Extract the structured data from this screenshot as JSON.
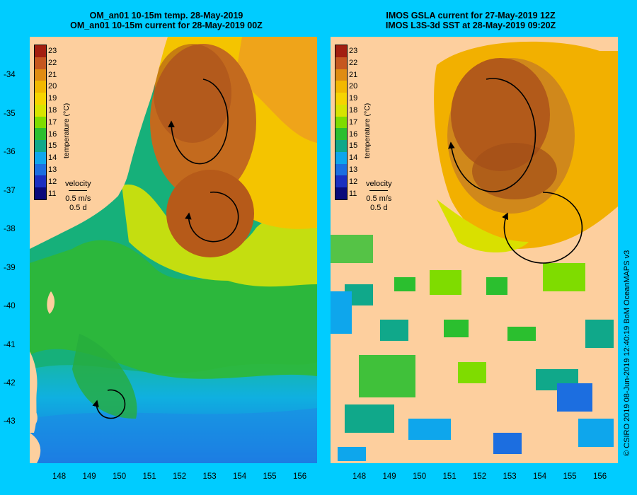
{
  "left_panel": {
    "title_line1": "OM_an01 10-15m temp. 28-May-2019",
    "title_line2": "OM_an01 10-15m current for 28-May-2019 00Z"
  },
  "right_panel": {
    "title_line1": "IMOS GSLA current for 27-May-2019 12Z",
    "title_line2": "IMOS L3S-3d SST at 28-May-2019 09:20Z"
  },
  "legend": {
    "ticks": [
      "23",
      "22",
      "21",
      "20",
      "19",
      "18",
      "17",
      "16",
      "15",
      "14",
      "13",
      "12",
      "11"
    ],
    "label": "temperature (°C)",
    "colors": [
      "#a31f10",
      "#c6571f",
      "#df8c12",
      "#f2b800",
      "#f6d400",
      "#d7e400",
      "#7fdc00",
      "#2bbf2f",
      "#10a88a",
      "#0ea6ec",
      "#1c6ee0",
      "#1b2fc0",
      "#0a0a7a"
    ]
  },
  "velocity_key": {
    "title": "velocity",
    "speed": "0.5 m/s",
    "duration": "0.5 d"
  },
  "y_axis_labels": [
    "-34",
    "-35",
    "-36",
    "-37",
    "-38",
    "-39",
    "-40",
    "-41",
    "-42",
    "-43"
  ],
  "x_axis_labels": [
    "148",
    "149",
    "150",
    "151",
    "152",
    "153",
    "154",
    "155",
    "156"
  ],
  "credit": "© CSIRO 2019   08-Jun-2019 12:40:19 BoM OceanMAPS v3",
  "colors": {
    "background": "#00ccff",
    "land": "#fdcf9e"
  }
}
